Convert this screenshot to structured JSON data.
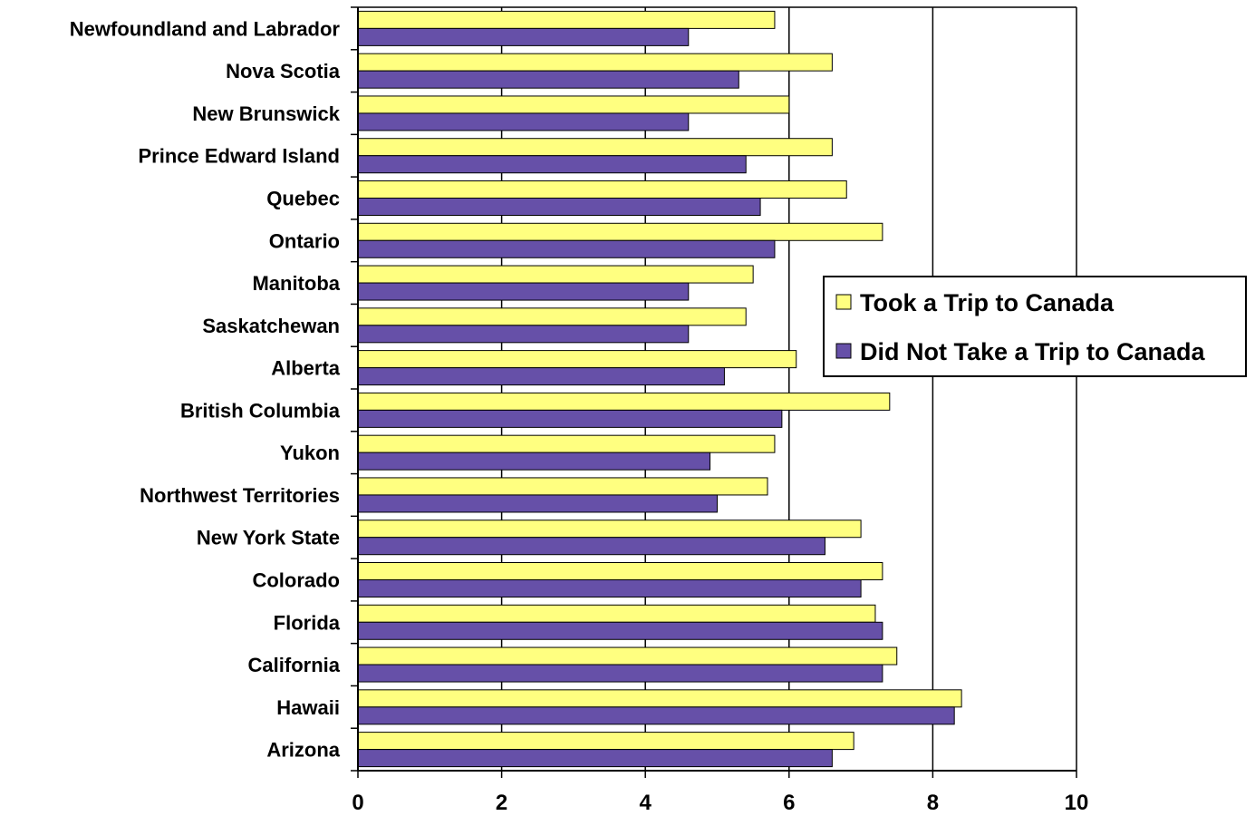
{
  "chart_data": {
    "type": "bar",
    "orientation": "horizontal",
    "categories": [
      "Newfoundland and Labrador",
      "Nova Scotia",
      "New Brunswick",
      "Prince Edward Island",
      "Quebec",
      "Ontario",
      "Manitoba",
      "Saskatchewan",
      "Alberta",
      "British Columbia",
      "Yukon",
      "Northwest Territories",
      "New York State",
      "Colorado",
      "Florida",
      "California",
      "Hawaii",
      "Arizona"
    ],
    "series": [
      {
        "name": "Took a Trip to Canada",
        "color": "#FFFF80",
        "values": [
          5.8,
          6.6,
          6.0,
          6.6,
          6.8,
          7.3,
          5.5,
          5.4,
          6.1,
          7.4,
          5.8,
          5.7,
          7.0,
          7.3,
          7.2,
          7.5,
          8.4,
          6.9
        ]
      },
      {
        "name": "Did Not Take a Trip to Canada",
        "color": "#6650A8",
        "values": [
          4.6,
          5.3,
          4.6,
          5.4,
          5.6,
          5.8,
          4.6,
          4.6,
          5.1,
          5.9,
          4.9,
          5.0,
          6.5,
          7.0,
          7.3,
          7.3,
          8.3,
          6.6
        ]
      }
    ],
    "xlim": [
      0,
      10
    ],
    "xticks": [
      0,
      2,
      4,
      6,
      8,
      10
    ],
    "grid": "vertical",
    "legend_position": "right",
    "title": "",
    "xlabel": "",
    "ylabel": ""
  }
}
